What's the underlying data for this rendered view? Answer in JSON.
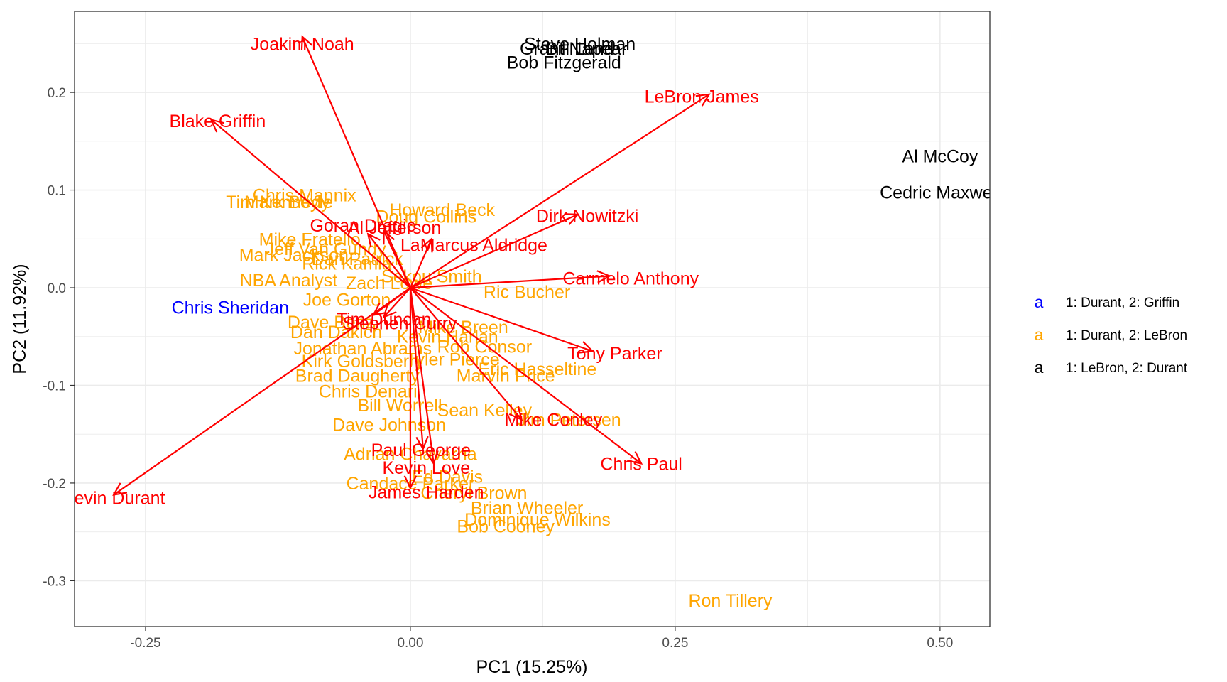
{
  "chart_data": {
    "type": "scatter",
    "subtype": "pca-biplot",
    "title": "",
    "xlabel": "PC1 (15.25%)",
    "ylabel": "PC2 (11.92%)",
    "xlim": [
      -0.317,
      0.547
    ],
    "ylim": [
      -0.347,
      0.283
    ],
    "x_ticks": [
      -0.25,
      0.0,
      0.25,
      0.5
    ],
    "x_tick_labels": [
      "-0.25",
      "0.00",
      "0.25",
      "0.50"
    ],
    "y_ticks": [
      -0.3,
      -0.2,
      -0.1,
      0.0,
      0.1,
      0.2
    ],
    "y_tick_labels": [
      "-0.3",
      "-0.2",
      "-0.1",
      "0.0",
      "0.1",
      "0.2"
    ],
    "grid": true,
    "legend_position": "right",
    "arrow_color": "#ff0000",
    "legend": [
      {
        "key": "a",
        "label": "1: Durant, 2: Griffin",
        "color": "#0000ff"
      },
      {
        "key": "a",
        "label": "1: Durant, 2: LeBron",
        "color": "#ffa500"
      },
      {
        "key": "a",
        "label": "1: LeBron, 2: Durant",
        "color": "#000000"
      }
    ],
    "series": [
      {
        "name": "1: Durant, 2: Griffin",
        "color": "#0000ff",
        "points": [
          {
            "label": "Chris Sheridan",
            "x": -0.17,
            "y": -0.02
          }
        ]
      },
      {
        "name": "1: Durant, 2: LeBron",
        "color": "#ffa500",
        "points": [
          {
            "label": "Chris Mannix",
            "x": -0.1,
            "y": 0.095
          },
          {
            "label": "Mark Boyle",
            "x": -0.115,
            "y": 0.088
          },
          {
            "label": "Tim Kennedy",
            "x": -0.125,
            "y": 0.088
          },
          {
            "label": "Howard Beck",
            "x": 0.03,
            "y": 0.08
          },
          {
            "label": "Doug Collins",
            "x": 0.015,
            "y": 0.073
          },
          {
            "label": "Mike Fratello",
            "x": -0.095,
            "y": 0.05
          },
          {
            "label": "Mark Jackson",
            "x": -0.11,
            "y": 0.034
          },
          {
            "label": "Jeff Van Gundy",
            "x": -0.08,
            "y": 0.04
          },
          {
            "label": "Rick Kamla",
            "x": -0.06,
            "y": 0.025
          },
          {
            "label": "Dan Patrick",
            "x": -0.05,
            "y": 0.03
          },
          {
            "label": "Ric Bucher",
            "x": 0.11,
            "y": -0.004
          },
          {
            "label": "NBA Analyst",
            "x": -0.115,
            "y": 0.008
          },
          {
            "label": "Joe Gorton",
            "x": -0.06,
            "y": -0.012
          },
          {
            "label": "Zach Lowe",
            "x": -0.02,
            "y": 0.005
          },
          {
            "label": "Sekou Smith",
            "x": 0.02,
            "y": 0.012
          },
          {
            "label": "Dave Benz",
            "x": -0.075,
            "y": -0.035
          },
          {
            "label": "Mike Breen",
            "x": 0.05,
            "y": -0.04
          },
          {
            "label": "Dan Dakich",
            "x": -0.07,
            "y": -0.045
          },
          {
            "label": "Kevin Harlan",
            "x": 0.035,
            "y": -0.05
          },
          {
            "label": "Jonathan Abrams",
            "x": -0.045,
            "y": -0.062
          },
          {
            "label": "Rob Consor",
            "x": 0.07,
            "y": -0.06
          },
          {
            "label": "Kirk Goldsberry",
            "x": -0.045,
            "y": -0.075
          },
          {
            "label": "Tyler Pierce",
            "x": 0.04,
            "y": -0.073
          },
          {
            "label": "Eric Hasseltine",
            "x": 0.12,
            "y": -0.083
          },
          {
            "label": "Brad Daugherty",
            "x": -0.05,
            "y": -0.09
          },
          {
            "label": "Marvin Price",
            "x": 0.09,
            "y": -0.09
          },
          {
            "label": "Chris Denari",
            "x": -0.04,
            "y": -0.106
          },
          {
            "label": "Bill Worrell",
            "x": -0.01,
            "y": -0.12
          },
          {
            "label": "Sean Kelley",
            "x": 0.07,
            "y": -0.125
          },
          {
            "label": "Dave Johnson",
            "x": -0.02,
            "y": -0.14
          },
          {
            "label": "Jim Petersen",
            "x": 0.15,
            "y": -0.135
          },
          {
            "label": "Adrian Chavarria",
            "x": 0.0,
            "y": -0.17
          },
          {
            "label": "Ed Davis",
            "x": 0.035,
            "y": -0.193
          },
          {
            "label": "Candace Parker",
            "x": 0.0,
            "y": -0.2
          },
          {
            "label": "Cheryl Brown",
            "x": 0.06,
            "y": -0.21
          },
          {
            "label": "Brian Wheeler",
            "x": 0.11,
            "y": -0.225
          },
          {
            "label": "Dominique Wilkins",
            "x": 0.12,
            "y": -0.237
          },
          {
            "label": "Bob Cooney",
            "x": 0.09,
            "y": -0.244
          },
          {
            "label": "Ron Tillery",
            "x": 0.302,
            "y": -0.32
          }
        ]
      },
      {
        "name": "1: LeBron, 2: Durant",
        "color": "#000000",
        "points": [
          {
            "label": "Steve Holman",
            "x": 0.16,
            "y": 0.25
          },
          {
            "label": "Grant Napear",
            "x": 0.154,
            "y": 0.245
          },
          {
            "label": "Bill Land",
            "x": 0.16,
            "y": 0.245
          },
          {
            "label": "Bob Fitzgerald",
            "x": 0.145,
            "y": 0.231
          },
          {
            "label": "Al McCoy",
            "x": 0.5,
            "y": 0.135
          },
          {
            "label": "Cedric Maxwell",
            "x": 0.5,
            "y": 0.098
          }
        ]
      }
    ],
    "arrows": [
      {
        "label": "Joakim Noah",
        "x": -0.102,
        "y": 0.257
      },
      {
        "label": "Blake Griffin",
        "x": -0.188,
        "y": 0.172
      },
      {
        "label": "LeBron James",
        "x": 0.282,
        "y": 0.198
      },
      {
        "label": "Dirk Nowitzki",
        "x": 0.158,
        "y": 0.075
      },
      {
        "label": "Carmelo Anthony",
        "x": 0.188,
        "y": 0.012
      },
      {
        "label": "Tony Parker",
        "x": 0.172,
        "y": -0.065
      },
      {
        "label": "Chris Paul",
        "x": 0.218,
        "y": -0.18
      },
      {
        "label": "Mike Conley",
        "x": 0.105,
        "y": -0.135
      },
      {
        "label": "Kevin Love",
        "x": 0.022,
        "y": -0.18
      },
      {
        "label": "Paul George",
        "x": 0.012,
        "y": -0.165
      },
      {
        "label": "James Harden",
        "x": 0.0,
        "y": -0.205
      },
      {
        "label": "Kevin Durant",
        "x": -0.28,
        "y": -0.212
      },
      {
        "label": "Tim Duncan",
        "x": -0.035,
        "y": -0.028
      },
      {
        "label": "Stephen Curry",
        "x": -0.025,
        "y": -0.03
      },
      {
        "label": "Goran Dragic",
        "x": -0.04,
        "y": 0.055
      },
      {
        "label": "Al Jefferson",
        "x": -0.025,
        "y": 0.058
      },
      {
        "label": "LaMarcus Aldridge",
        "x": 0.02,
        "y": 0.05
      }
    ],
    "labels": [
      {
        "text": "Joakim Noah",
        "x": -0.102,
        "y": 0.25
      },
      {
        "text": "Blake Griffin",
        "x": -0.182,
        "y": 0.171
      },
      {
        "text": "LeBron James",
        "x": 0.275,
        "y": 0.196
      },
      {
        "text": "Dirk Nowitzki",
        "x": 0.167,
        "y": 0.074
      },
      {
        "text": "Carmelo Anthony",
        "x": 0.208,
        "y": 0.01
      },
      {
        "text": "Tony Parker",
        "x": 0.193,
        "y": -0.067
      },
      {
        "text": "Chris Paul",
        "x": 0.218,
        "y": -0.18
      },
      {
        "text": "Mike Conley",
        "x": 0.135,
        "y": -0.135
      },
      {
        "text": "Kevin Love",
        "x": 0.015,
        "y": -0.184
      },
      {
        "text": "Paul George",
        "x": 0.01,
        "y": -0.166
      },
      {
        "text": "James Harden",
        "x": 0.015,
        "y": -0.209
      },
      {
        "text": "Kevin Durant",
        "x": -0.28,
        "y": -0.215
      },
      {
        "text": "Tim Duncan",
        "x": -0.025,
        "y": -0.032
      },
      {
        "text": "Stephen Curry",
        "x": -0.01,
        "y": -0.036
      },
      {
        "text": "Goran Dragic",
        "x": -0.045,
        "y": 0.064
      },
      {
        "text": "Al Jefferson",
        "x": -0.015,
        "y": 0.062
      },
      {
        "text": "LaMarcus Aldridge",
        "x": 0.06,
        "y": 0.044
      }
    ]
  }
}
